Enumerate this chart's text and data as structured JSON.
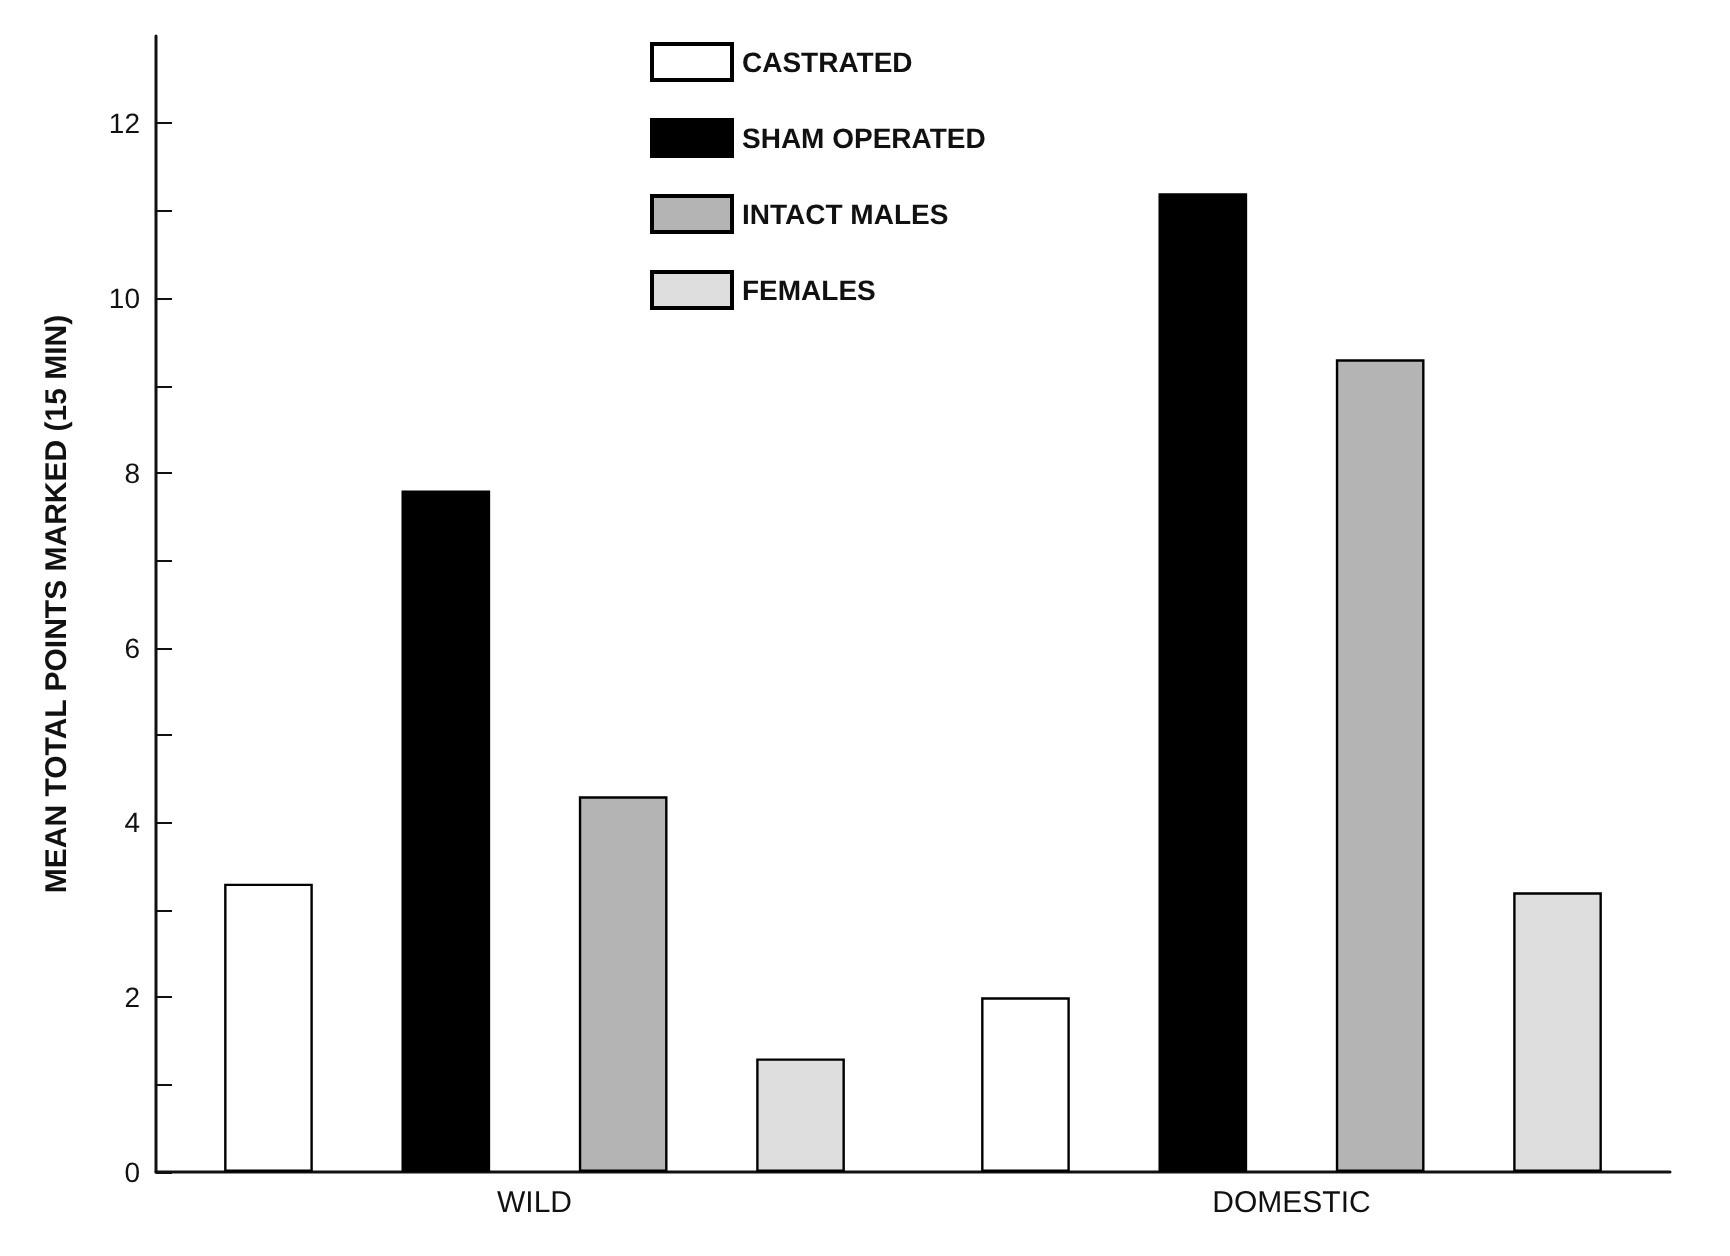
{
  "chart_data": {
    "type": "bar",
    "ylabel": "MEAN TOTAL POINTS MARKED (15 MIN)",
    "categories": [
      "WILD",
      "DOMESTIC"
    ],
    "series": [
      {
        "name": "CASTRATED",
        "color": "#ffffff",
        "values": [
          3.3,
          2.0
        ]
      },
      {
        "name": "SHAM OPERATED",
        "color": "#000000",
        "values": [
          7.8,
          11.2
        ]
      },
      {
        "name": "INTACT MALES",
        "color": "#b4b4b4",
        "values": [
          4.3,
          9.3
        ]
      },
      {
        "name": "FEMALES",
        "color": "#dedede",
        "values": [
          1.3,
          3.2
        ]
      }
    ],
    "ylim": [
      0,
      13
    ],
    "yticks": [
      0,
      {
        "value": 1,
        "label": null
      },
      2,
      {
        "value": 3,
        "label": null
      },
      4,
      {
        "value": 5,
        "label": null
      },
      6,
      {
        "value": 7,
        "label": null
      },
      8,
      {
        "value": 9,
        "label": null
      },
      10,
      {
        "value": 11,
        "label": null
      },
      12
    ],
    "legend": "top",
    "grid": false
  }
}
